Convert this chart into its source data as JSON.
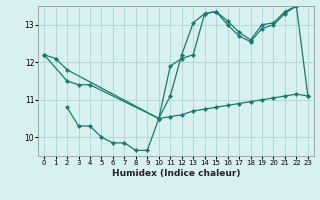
{
  "background_color": "#d8f0f0",
  "grid_color": "#a8d8d8",
  "line_color": "#1a7a6e",
  "xlabel": "Humidex (Indice chaleur)",
  "xlim": [
    -0.5,
    23.5
  ],
  "ylim": [
    9.5,
    13.5
  ],
  "yticks": [
    10,
    11,
    12,
    13
  ],
  "xticks": [
    0,
    1,
    2,
    3,
    4,
    5,
    6,
    7,
    8,
    9,
    10,
    11,
    12,
    13,
    14,
    15,
    16,
    17,
    18,
    19,
    20,
    21,
    22,
    23
  ],
  "series": [
    {
      "x": [
        0,
        1,
        2,
        10,
        11,
        12,
        13,
        14,
        15,
        16,
        17,
        18,
        19,
        20,
        21,
        22,
        23
      ],
      "y": [
        12.2,
        12.1,
        11.8,
        10.5,
        11.1,
        12.2,
        13.05,
        13.3,
        13.35,
        13.1,
        12.8,
        12.6,
        13.0,
        13.05,
        13.35,
        13.5,
        11.1
      ]
    },
    {
      "x": [
        0,
        2,
        3,
        4,
        10,
        11,
        12,
        13,
        14,
        15,
        16,
        17,
        18,
        19,
        20,
        21,
        22
      ],
      "y": [
        12.2,
        11.5,
        11.4,
        11.4,
        10.5,
        11.9,
        12.1,
        12.2,
        13.3,
        13.35,
        13.0,
        12.7,
        12.55,
        12.9,
        13.0,
        13.3,
        13.5
      ]
    },
    {
      "x": [
        2,
        3,
        4,
        5,
        6,
        7,
        8,
        9,
        10,
        11,
        12,
        13,
        14,
        15,
        16,
        17,
        18,
        19,
        20,
        21,
        22,
        23
      ],
      "y": [
        10.8,
        10.3,
        10.3,
        10.0,
        9.85,
        9.85,
        9.65,
        9.65,
        10.5,
        10.55,
        10.6,
        10.7,
        10.75,
        10.8,
        10.85,
        10.9,
        10.95,
        11.0,
        11.05,
        11.1,
        11.15,
        11.1
      ]
    }
  ]
}
